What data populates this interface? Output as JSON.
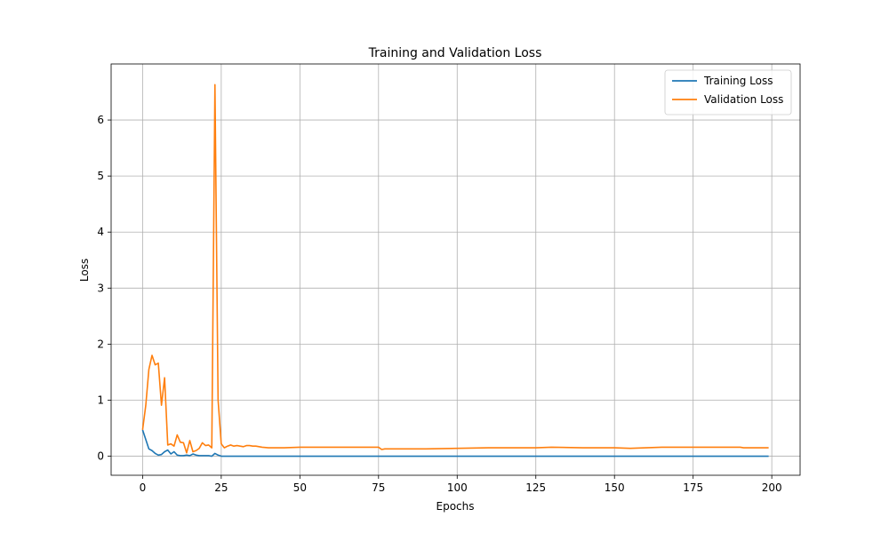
{
  "chart_data": {
    "type": "line",
    "title": "Training and Validation Loss",
    "xlabel": "Epochs",
    "ylabel": "Loss",
    "xlim": [
      -10,
      209
    ],
    "ylim": [
      -0.34,
      7.0
    ],
    "xticks": [
      0,
      25,
      50,
      75,
      100,
      125,
      150,
      175,
      200
    ],
    "yticks": [
      0,
      1,
      2,
      3,
      4,
      5,
      6
    ],
    "grid": true,
    "legend_position": "top-right",
    "series": [
      {
        "name": "Training Loss",
        "color": "#1f77b4",
        "x": [
          0,
          1,
          2,
          3,
          4,
          5,
          6,
          7,
          8,
          9,
          10,
          11,
          12,
          13,
          14,
          15,
          16,
          17,
          18,
          19,
          20,
          21,
          22,
          23,
          24,
          25,
          26,
          27,
          28,
          29,
          30,
          40,
          50,
          60,
          75,
          100,
          125,
          150,
          175,
          199
        ],
        "values": [
          0.47,
          0.3,
          0.13,
          0.1,
          0.05,
          0.02,
          0.03,
          0.08,
          0.11,
          0.04,
          0.08,
          0.02,
          0.01,
          0.01,
          0.02,
          0.01,
          0.04,
          0.02,
          0.01,
          0.01,
          0.01,
          0.01,
          0.0,
          0.05,
          0.02,
          0.0,
          0.0,
          0.0,
          0.0,
          0.0,
          0.0,
          0.0,
          0.0,
          0.0,
          0.0,
          0.0,
          0.0,
          0.0,
          0.0,
          0.0
        ]
      },
      {
        "name": "Validation Loss",
        "color": "#ff7f0e",
        "x": [
          0,
          1,
          2,
          3,
          4,
          5,
          6,
          7,
          8,
          9,
          10,
          11,
          12,
          13,
          14,
          15,
          16,
          17,
          18,
          19,
          20,
          21,
          22,
          23,
          24,
          25,
          26,
          27,
          28,
          29,
          30,
          31,
          32,
          33,
          34,
          35,
          36,
          38,
          40,
          45,
          50,
          55,
          60,
          65,
          70,
          75,
          76,
          77,
          80,
          90,
          100,
          110,
          125,
          130,
          140,
          150,
          155,
          160,
          165,
          170,
          180,
          190,
          191,
          199
        ],
        "values": [
          0.47,
          0.9,
          1.55,
          1.8,
          1.63,
          1.66,
          0.91,
          1.4,
          0.2,
          0.22,
          0.18,
          0.38,
          0.25,
          0.24,
          0.06,
          0.28,
          0.08,
          0.1,
          0.14,
          0.24,
          0.19,
          0.2,
          0.15,
          6.63,
          1.0,
          0.22,
          0.15,
          0.18,
          0.2,
          0.18,
          0.19,
          0.18,
          0.17,
          0.19,
          0.19,
          0.18,
          0.18,
          0.16,
          0.15,
          0.15,
          0.16,
          0.16,
          0.16,
          0.16,
          0.16,
          0.16,
          0.12,
          0.13,
          0.13,
          0.13,
          0.14,
          0.15,
          0.15,
          0.16,
          0.15,
          0.15,
          0.14,
          0.15,
          0.16,
          0.16,
          0.16,
          0.16,
          0.15,
          0.15
        ]
      }
    ]
  }
}
